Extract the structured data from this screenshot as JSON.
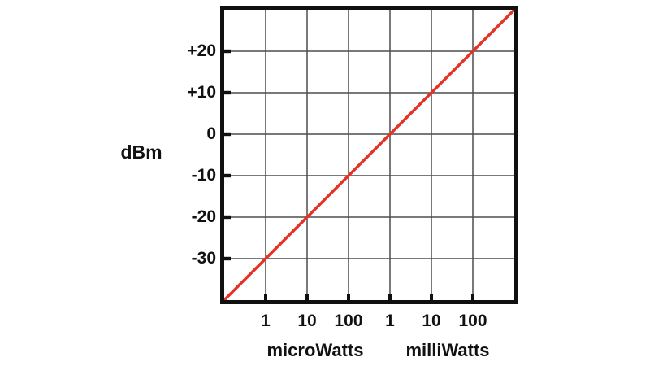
{
  "chart_data": {
    "type": "line",
    "title": "",
    "description": "Conversion between power (log scale, microWatts / milliWatts) and dBm; straight diagonal line on log axes",
    "y_axis": {
      "label": "dBm",
      "range_dBm": [
        -40,
        30
      ],
      "tick_values": [
        20,
        10,
        0,
        -10,
        -20,
        -30
      ],
      "tick_labels": [
        "+20",
        "+10",
        "0",
        "-10",
        "-20",
        "-30"
      ]
    },
    "x_axis": {
      "scale": "log",
      "decades_total": 7,
      "range_equivalent_dBm": [
        -40,
        30
      ],
      "tick_decade_positions": [
        1,
        2,
        3,
        4,
        5,
        6
      ],
      "tick_labels": [
        "1",
        "10",
        "100",
        "1",
        "10",
        "100"
      ],
      "group_labels": [
        "microWatts",
        "milliWatts"
      ]
    },
    "series": [
      {
        "name": "dBm vs power",
        "color": "#e53228",
        "stroke_width": 3.5,
        "points_dBm": [
          [
            -40,
            -40
          ],
          [
            30,
            30
          ]
        ]
      }
    ],
    "key_points": [
      {
        "power": "1 microWatt",
        "dBm": -30
      },
      {
        "power": "10 microWatts",
        "dBm": -20
      },
      {
        "power": "100 microWatts",
        "dBm": -10
      },
      {
        "power": "1 milliWatt",
        "dBm": 0
      },
      {
        "power": "10 milliWatts",
        "dBm": 10
      },
      {
        "power": "100 milliWatts",
        "dBm": 20
      }
    ],
    "grid": {
      "on": true,
      "color": "#4d4d4d",
      "line_width": 1.5
    },
    "border_color": "#101010",
    "tick_mark_color": "#101010",
    "background": "#ffffff",
    "legend": "none"
  }
}
